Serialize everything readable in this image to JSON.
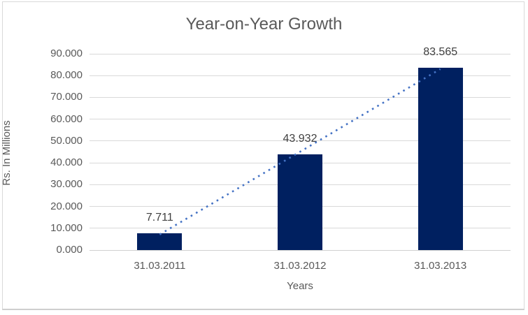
{
  "chart_data": {
    "type": "bar",
    "title": "Year-on-Year Growth",
    "xlabel": "Years",
    "ylabel": "Rs. In Millions",
    "categories": [
      "31.03.2011",
      "31.03.2012",
      "31.03.2013"
    ],
    "values": [
      7.711,
      43.932,
      83.565
    ],
    "data_labels": [
      "7.711",
      "43.932",
      "83.565"
    ],
    "ylim": [
      0,
      90
    ],
    "ytick_step": 10,
    "ytick_labels": [
      "0.000",
      "10.000",
      "20.000",
      "30.000",
      "40.000",
      "50.000",
      "60.000",
      "70.000",
      "80.000",
      "90.000"
    ],
    "grid": true,
    "legend": false,
    "trendline": {
      "type": "linear",
      "style": "dotted"
    },
    "colors": {
      "bar": "#002060",
      "trendline": "#4472C4",
      "gridline": "#D9D9D9",
      "axis_line": "#D0D0D0",
      "tick_text": "#595959",
      "title_text": "#595959",
      "data_label_text": "#404040",
      "border": "#D9D9D9",
      "border_bottom": "#CFCFCF",
      "background": "#FFFFFF"
    }
  }
}
